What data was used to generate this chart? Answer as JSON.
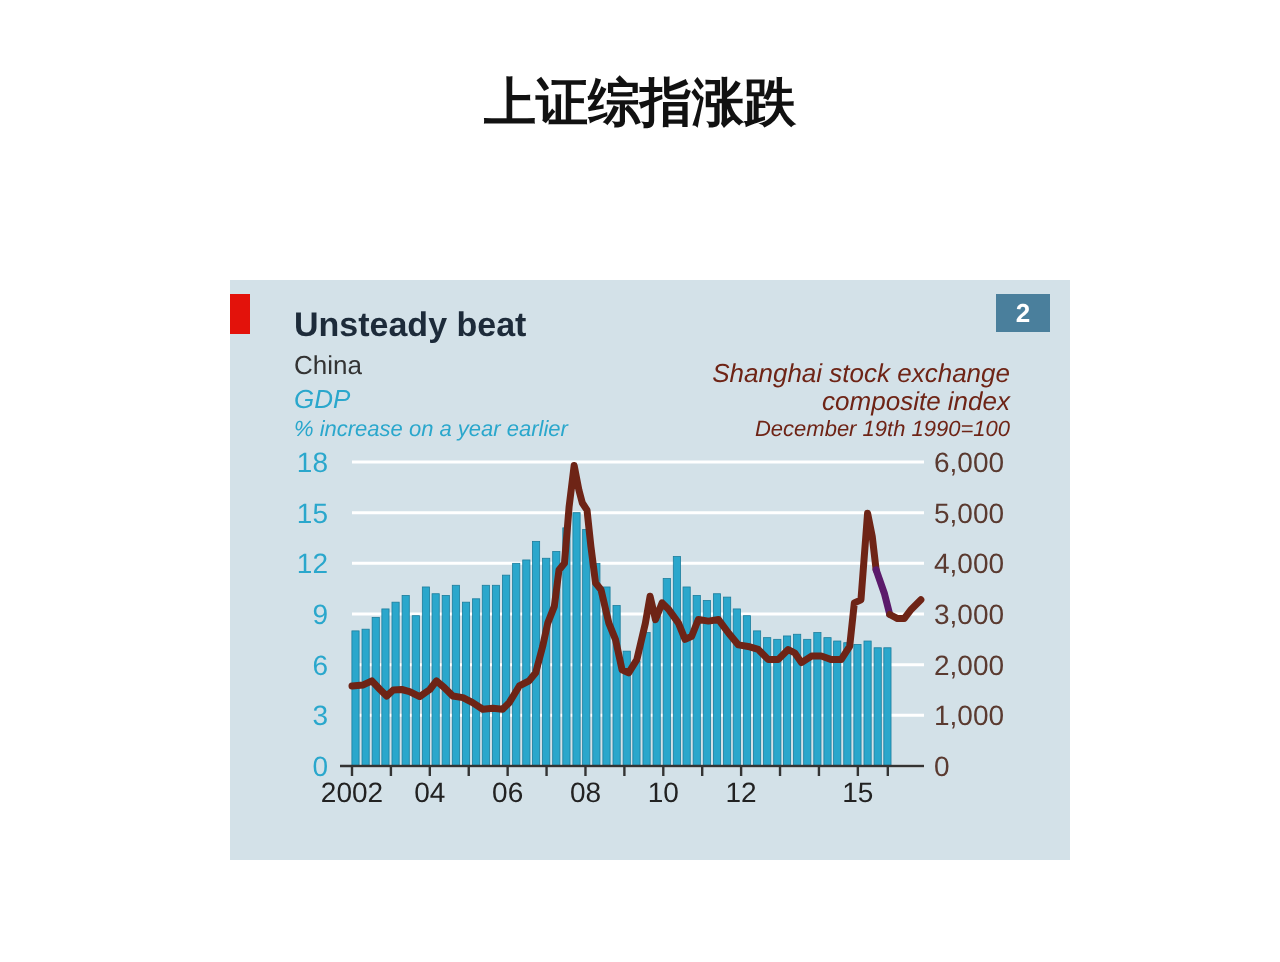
{
  "chart_data": {
    "type": "bar",
    "title": "上证综指涨跌",
    "subtitle": "Unsteady beat",
    "ylabel": "% increase on a year earlier",
    "y2label": "December 19th 1990=100",
    "annotations": [
      "China",
      "2"
    ],
    "xlim": [
      2002,
      2016.7
    ],
    "xticks": [
      {
        "value": 2002,
        "label": "2002"
      },
      {
        "value": 2003,
        "label": null
      },
      {
        "value": 2004,
        "label": "04"
      },
      {
        "value": 2005,
        "label": null
      },
      {
        "value": 2006,
        "label": "06"
      },
      {
        "value": 2007,
        "label": null
      },
      {
        "value": 2008,
        "label": "08"
      },
      {
        "value": 2009,
        "label": null
      },
      {
        "value": 2010,
        "label": "10"
      },
      {
        "value": 2011,
        "label": null
      },
      {
        "value": 2012,
        "label": "12"
      },
      {
        "value": 2013,
        "label": null
      },
      {
        "value": 2014,
        "label": null
      },
      {
        "value": 2015,
        "label": "15"
      },
      {
        "value": 2015.77,
        "label": null
      }
    ],
    "ylim": [
      0,
      18
    ],
    "yticks": [
      0,
      3,
      6,
      9,
      12,
      15,
      18
    ],
    "y2lim": [
      0,
      6000
    ],
    "y2ticks": [
      0,
      {
        "value": 1000,
        "label": "1,000"
      },
      {
        "value": 2000,
        "label": "2,000"
      },
      {
        "value": 3000,
        "label": "3,000"
      },
      {
        "value": 4000,
        "label": "4,000"
      },
      {
        "value": 5000,
        "label": "5,000"
      },
      {
        "value": 6000,
        "label": "6,000"
      }
    ],
    "grid": "y",
    "series": [
      {
        "name": "GDP",
        "color": "#2aa7cc",
        "x": [
          2002.09,
          2002.35,
          2002.61,
          2002.86,
          2003.12,
          2003.38,
          2003.64,
          2003.9,
          2004.15,
          2004.41,
          2004.67,
          2004.93,
          2005.19,
          2005.44,
          2005.7,
          2005.96,
          2006.22,
          2006.48,
          2006.73,
          2006.99,
          2007.25,
          2007.51,
          2007.77,
          2008.02,
          2008.28,
          2008.54,
          2008.8,
          2009.06,
          2009.31,
          2009.57,
          2009.83,
          2010.09,
          2010.35,
          2010.6,
          2010.86,
          2011.12,
          2011.38,
          2011.64,
          2011.89,
          2012.15,
          2012.41,
          2012.67,
          2012.93,
          2013.18,
          2013.44,
          2013.7,
          2013.96,
          2014.22,
          2014.47,
          2014.73,
          2014.99,
          2015.25,
          2015.51,
          2015.76
        ],
        "values": [
          8.0,
          8.1,
          8.8,
          9.3,
          9.7,
          10.1,
          8.9,
          10.6,
          10.2,
          10.1,
          10.7,
          9.7,
          9.9,
          10.7,
          10.7,
          11.3,
          12.0,
          12.2,
          13.3,
          12.3,
          12.7,
          14.1,
          15.0,
          14.0,
          12.0,
          10.6,
          9.5,
          6.8,
          6.2,
          7.9,
          8.9,
          11.1,
          12.4,
          10.6,
          10.1,
          9.8,
          10.2,
          10.0,
          9.3,
          8.9,
          8.0,
          7.6,
          7.5,
          7.7,
          7.8,
          7.5,
          7.9,
          7.6,
          7.4,
          7.3,
          7.2,
          7.4,
          7.0,
          7.0
        ]
      },
      {
        "type": "line",
        "name": "Shanghai stock exchange composite index",
        "axis": "y2",
        "color": "#6e2416",
        "x": [
          2002.0,
          2002.29,
          2002.51,
          2002.72,
          2002.89,
          2003.06,
          2003.28,
          2003.48,
          2003.74,
          2004.0,
          2004.17,
          2004.37,
          2004.59,
          2004.85,
          2005.1,
          2005.36,
          2005.62,
          2005.87,
          2006.04,
          2006.3,
          2006.55,
          2006.72,
          2006.9,
          2007.03,
          2007.2,
          2007.32,
          2007.46,
          2007.58,
          2007.71,
          2007.83,
          2007.92,
          2008.04,
          2008.14,
          2008.26,
          2008.4,
          2008.6,
          2008.77,
          2008.94,
          2009.11,
          2009.32,
          2009.54,
          2009.66,
          2009.8,
          2009.97,
          2010.14,
          2010.39,
          2010.56,
          2010.73,
          2010.9,
          2011.16,
          2011.42,
          2011.67,
          2011.93,
          2012.18,
          2012.44,
          2012.7,
          2012.95,
          2013.21,
          2013.38,
          2013.55,
          2013.81,
          2014.06,
          2014.32,
          2014.57,
          2014.79,
          2014.91,
          2015.08,
          2015.25,
          2015.37,
          2015.47
        ],
        "values": [
          1580,
          1600,
          1680,
          1510,
          1380,
          1500,
          1510,
          1470,
          1370,
          1510,
          1680,
          1550,
          1380,
          1350,
          1250,
          1120,
          1140,
          1120,
          1250,
          1580,
          1680,
          1840,
          2360,
          2820,
          3150,
          3870,
          4000,
          5120,
          5930,
          5450,
          5190,
          5050,
          4330,
          3610,
          3480,
          2820,
          2500,
          1900,
          1840,
          2100,
          2820,
          3350,
          2890,
          3220,
          3090,
          2820,
          2500,
          2560,
          2890,
          2860,
          2890,
          2630,
          2390,
          2360,
          2300,
          2100,
          2100,
          2300,
          2230,
          2040,
          2170,
          2170,
          2100,
          2100,
          2360,
          3220,
          3280,
          4990,
          4530,
          3870
        ]
      },
      {
        "type": "line",
        "axis": "y2",
        "color": "#5b1a6b",
        "x": [
          2015.47,
          2015.68,
          2015.82
        ],
        "values": [
          3870,
          3410,
          2990
        ]
      },
      {
        "type": "line",
        "axis": "y2",
        "color": "#6e2416",
        "x": [
          2015.82,
          2016.02,
          2016.19,
          2016.37,
          2016.62
        ],
        "values": [
          2990,
          2910,
          2910,
          3090,
          3280
        ]
      }
    ]
  }
}
